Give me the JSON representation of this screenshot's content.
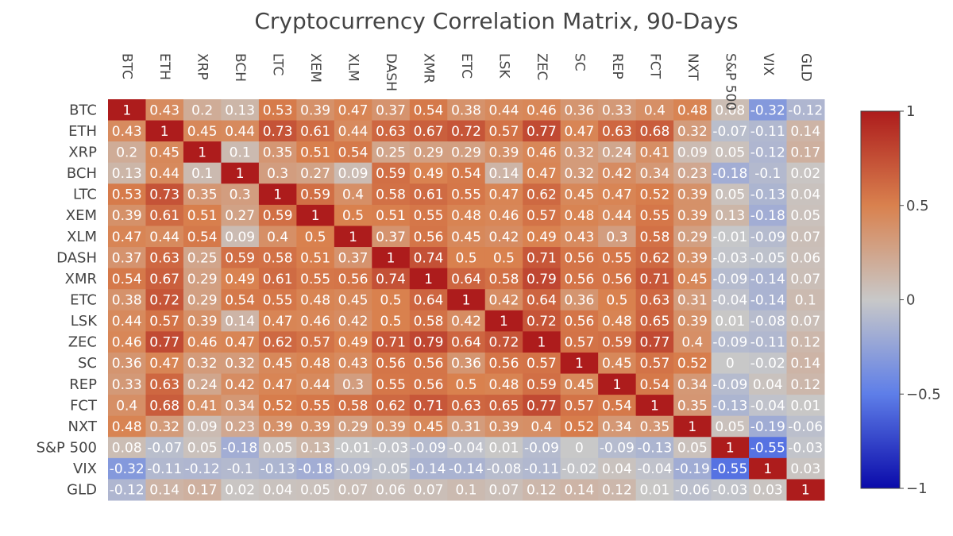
{
  "chart_data": {
    "type": "heatmap",
    "title": "Cryptocurrency Correlation Matrix, 90-Days",
    "categories": [
      "BTC",
      "ETH",
      "XRP",
      "BCH",
      "LTC",
      "XEM",
      "XLM",
      "DASH",
      "XMR",
      "ETC",
      "LSK",
      "ZEC",
      "SC",
      "REP",
      "FCT",
      "NXT",
      "S&P 500",
      "VIX",
      "GLD"
    ],
    "values": [
      [
        1,
        0.43,
        0.2,
        0.13,
        0.53,
        0.39,
        0.47,
        0.37,
        0.54,
        0.38,
        0.44,
        0.46,
        0.36,
        0.33,
        0.4,
        0.48,
        0.08,
        -0.32,
        -0.12
      ],
      [
        0.43,
        1,
        0.45,
        0.44,
        0.73,
        0.61,
        0.44,
        0.63,
        0.67,
        0.72,
        0.57,
        0.77,
        0.47,
        0.63,
        0.68,
        0.32,
        -0.07,
        -0.11,
        0.14
      ],
      [
        0.2,
        0.45,
        1,
        0.1,
        0.35,
        0.51,
        0.54,
        0.25,
        0.29,
        0.29,
        0.39,
        0.46,
        0.32,
        0.24,
        0.41,
        0.09,
        0.05,
        -0.12,
        0.17
      ],
      [
        0.13,
        0.44,
        0.1,
        1,
        0.3,
        0.27,
        0.09,
        0.59,
        0.49,
        0.54,
        0.14,
        0.47,
        0.32,
        0.42,
        0.34,
        0.23,
        -0.18,
        -0.1,
        0.02
      ],
      [
        0.53,
        0.73,
        0.35,
        0.3,
        1,
        0.59,
        0.4,
        0.58,
        0.61,
        0.55,
        0.47,
        0.62,
        0.45,
        0.47,
        0.52,
        0.39,
        0.05,
        -0.13,
        0.04
      ],
      [
        0.39,
        0.61,
        0.51,
        0.27,
        0.59,
        1,
        0.5,
        0.51,
        0.55,
        0.48,
        0.46,
        0.57,
        0.48,
        0.44,
        0.55,
        0.39,
        0.13,
        -0.18,
        0.05
      ],
      [
        0.47,
        0.44,
        0.54,
        0.09,
        0.4,
        0.5,
        1,
        0.37,
        0.56,
        0.45,
        0.42,
        0.49,
        0.43,
        0.3,
        0.58,
        0.29,
        -0.01,
        -0.09,
        0.07
      ],
      [
        0.37,
        0.63,
        0.25,
        0.59,
        0.58,
        0.51,
        0.37,
        1,
        0.74,
        0.5,
        0.5,
        0.71,
        0.56,
        0.55,
        0.62,
        0.39,
        -0.03,
        -0.05,
        0.06
      ],
      [
        0.54,
        0.67,
        0.29,
        0.49,
        0.61,
        0.55,
        0.56,
        0.74,
        1,
        0.64,
        0.58,
        0.79,
        0.56,
        0.56,
        0.71,
        0.45,
        -0.09,
        -0.14,
        0.07
      ],
      [
        0.38,
        0.72,
        0.29,
        0.54,
        0.55,
        0.48,
        0.45,
        0.5,
        0.64,
        1,
        0.42,
        0.64,
        0.36,
        0.5,
        0.63,
        0.31,
        -0.04,
        -0.14,
        0.1
      ],
      [
        0.44,
        0.57,
        0.39,
        0.14,
        0.47,
        0.46,
        0.42,
        0.5,
        0.58,
        0.42,
        1,
        0.72,
        0.56,
        0.48,
        0.65,
        0.39,
        0.01,
        -0.08,
        0.07
      ],
      [
        0.46,
        0.77,
        0.46,
        0.47,
        0.62,
        0.57,
        0.49,
        0.71,
        0.79,
        0.64,
        0.72,
        1,
        0.57,
        0.59,
        0.77,
        0.4,
        -0.09,
        -0.11,
        0.12
      ],
      [
        0.36,
        0.47,
        0.32,
        0.32,
        0.45,
        0.48,
        0.43,
        0.56,
        0.56,
        0.36,
        0.56,
        0.57,
        1,
        0.45,
        0.57,
        0.52,
        0,
        -0.02,
        0.14
      ],
      [
        0.33,
        0.63,
        0.24,
        0.42,
        0.47,
        0.44,
        0.3,
        0.55,
        0.56,
        0.5,
        0.48,
        0.59,
        0.45,
        1,
        0.54,
        0.34,
        -0.09,
        0.04,
        0.12
      ],
      [
        0.4,
        0.68,
        0.41,
        0.34,
        0.52,
        0.55,
        0.58,
        0.62,
        0.71,
        0.63,
        0.65,
        0.77,
        0.57,
        0.54,
        1,
        0.35,
        -0.13,
        -0.04,
        0.01
      ],
      [
        0.48,
        0.32,
        0.09,
        0.23,
        0.39,
        0.39,
        0.29,
        0.39,
        0.45,
        0.31,
        0.39,
        0.4,
        0.52,
        0.34,
        0.35,
        1,
        0.05,
        -0.19,
        -0.06
      ],
      [
        0.08,
        -0.07,
        0.05,
        -0.18,
        0.05,
        0.13,
        -0.01,
        -0.03,
        -0.09,
        -0.04,
        0.01,
        -0.09,
        0,
        -0.09,
        -0.13,
        0.05,
        1,
        -0.55,
        -0.03
      ],
      [
        -0.32,
        -0.11,
        -0.12,
        -0.1,
        -0.13,
        -0.18,
        -0.09,
        -0.05,
        -0.14,
        -0.14,
        -0.08,
        -0.11,
        -0.02,
        0.04,
        -0.04,
        -0.19,
        -0.55,
        1,
        0.03
      ],
      [
        -0.12,
        0.14,
        0.17,
        0.02,
        0.04,
        0.05,
        0.07,
        0.06,
        0.07,
        0.1,
        0.07,
        0.12,
        0.14,
        0.12,
        0.01,
        -0.06,
        -0.03,
        0.03,
        1
      ]
    ],
    "zlim": [
      -1,
      1
    ],
    "colorbar": {
      "ticks": [
        1,
        0.5,
        0,
        -0.5,
        -1
      ],
      "tick_labels": [
        "1",
        "0.5",
        "0",
        "−0.5",
        "−1"
      ]
    },
    "colorscale": [
      "#0a0aaa",
      "#5e7ee8",
      "#c8c8c8",
      "#d9814e",
      "#ad1c1c"
    ],
    "legend": "colorbar right",
    "grid": false,
    "xlabel": "",
    "ylabel": ""
  }
}
